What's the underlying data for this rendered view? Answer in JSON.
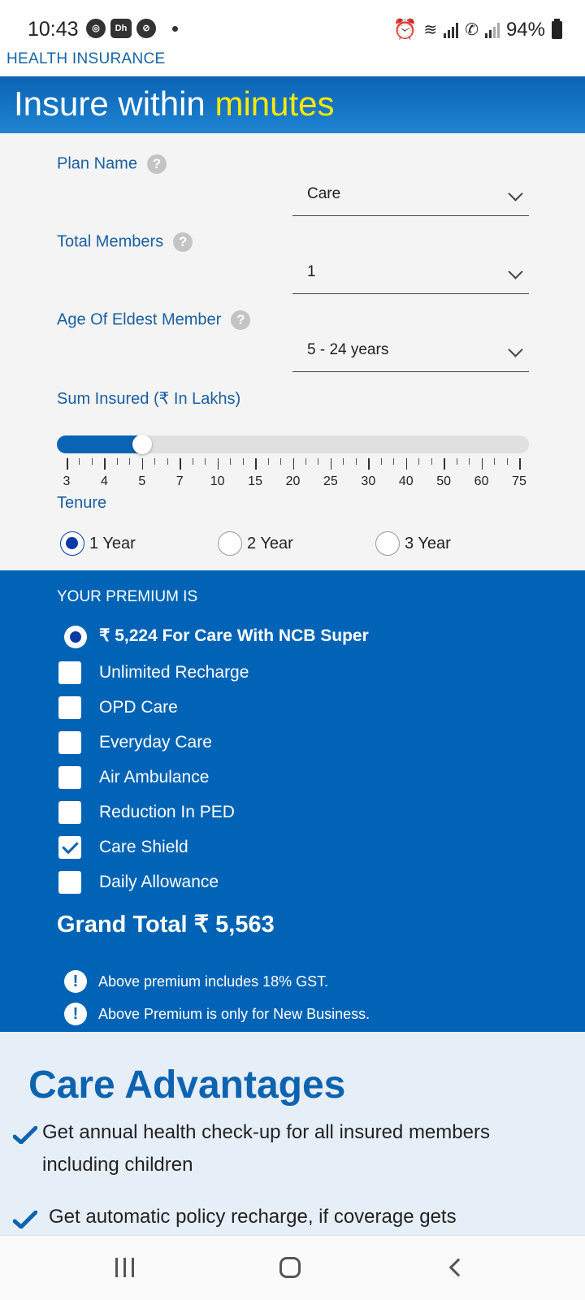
{
  "status_bar": {
    "time": "10:43",
    "notif_icons": [
      "chrome-icon",
      "dailyhunt-icon",
      "restricted-icon"
    ],
    "battery": "94%"
  },
  "brand": "HEALTH INSURANCE",
  "banner": {
    "title_prefix": "Insure within ",
    "title_highlight": "minutes",
    "highlight_color": "#ffe800",
    "background": "#0a64b4"
  },
  "form": {
    "plan_name": {
      "label": "Plan Name",
      "value": "Care"
    },
    "total_members": {
      "label": "Total Members",
      "value": "1"
    },
    "eldest_age": {
      "label": "Age Of Eldest Member",
      "value": "5 - 24 years"
    },
    "sum_insured": {
      "label": "Sum Insured (₹ In Lakhs)",
      "ticks": [
        "3",
        "4",
        "5",
        "7",
        "10",
        "15",
        "20",
        "25",
        "30",
        "40",
        "50",
        "60",
        "75"
      ],
      "selected": "5"
    },
    "tenure": {
      "label": "Tenure",
      "options": [
        "1 Year",
        "2 Year",
        "3 Year"
      ],
      "selected": "1 Year"
    },
    "help_glyph": "?"
  },
  "premium": {
    "heading": "YOUR PREMIUM IS",
    "plan_line": "₹ 5,224 For Care With NCB Super",
    "addons": [
      {
        "label": "Unlimited Recharge",
        "checked": false
      },
      {
        "label": "OPD Care",
        "checked": false
      },
      {
        "label": "Everyday Care",
        "checked": false
      },
      {
        "label": "Air Ambulance",
        "checked": false
      },
      {
        "label": "Reduction In PED",
        "checked": false
      },
      {
        "label": "Care Shield",
        "checked": true
      },
      {
        "label": "Daily Allowance",
        "checked": false
      }
    ],
    "grand_total": "Grand Total ₹ 5,563",
    "notes": [
      "Above premium includes 18% GST.",
      "Above Premium is only for New Business."
    ],
    "note_glyph": "!",
    "background": "#0063b5"
  },
  "advantages": {
    "title": "Care Advantages",
    "items": [
      "Get annual health check-up for all insured members including children",
      "Get automatic policy recharge, if coverage gets"
    ],
    "accent": "#0c63b0"
  },
  "navbar": {
    "icons": [
      "recent-apps-icon",
      "home-icon",
      "back-icon"
    ]
  }
}
